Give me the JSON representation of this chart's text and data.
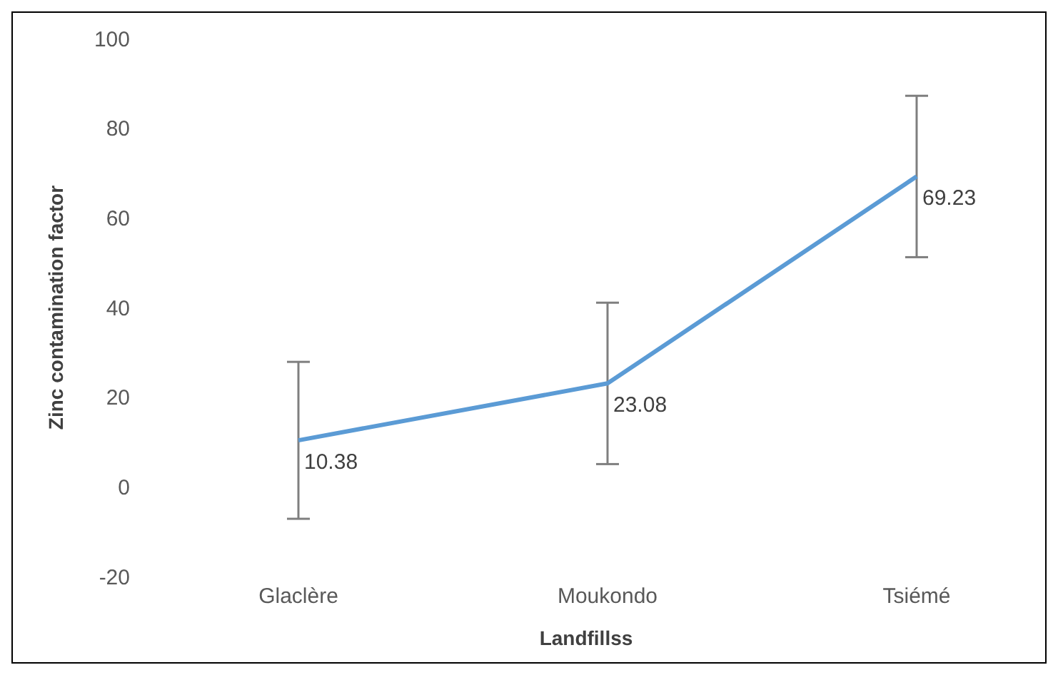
{
  "chart_data": {
    "type": "line",
    "xlabel": "Landfillss",
    "ylabel": "Zinc contamination factor",
    "categories": [
      "Glaclère",
      "Moukondo",
      "Tsiémé"
    ],
    "series": [
      {
        "color": "#5b9bd5",
        "values": [
          10.38,
          23.08,
          69.23
        ],
        "errors": [
          17.5,
          18,
          18
        ]
      }
    ],
    "ylim": [
      -20,
      100
    ],
    "yticks": [
      -20,
      0,
      20,
      40,
      60,
      80,
      100
    ],
    "data_labels": true,
    "marker": "none",
    "line_style": "solid",
    "grid": false,
    "legend": false
  }
}
